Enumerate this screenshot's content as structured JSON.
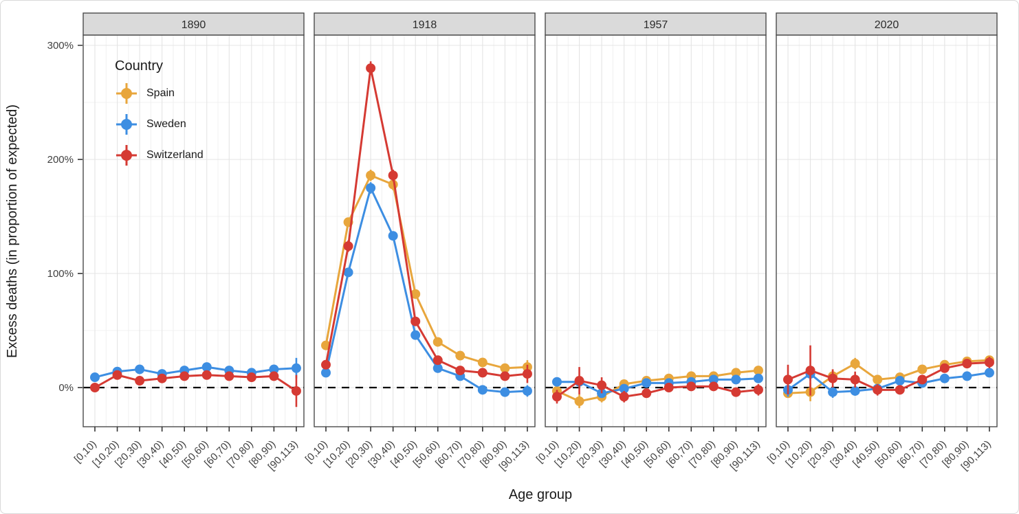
{
  "figure": {
    "ylabel": "Excess deaths (in proportion of expected)",
    "xlabel": "Age group"
  },
  "colors": {
    "series": {
      "Spain": "#E8A63C",
      "Sweden": "#3D8EE2",
      "Switzerland": "#D53A33"
    },
    "strip_bg": "#DADADA",
    "strip_border": "#4A4A4A",
    "panel_border": "#4A4A4A",
    "panel_bg": "#FFFFFF",
    "grid_major": "#E4E4E4",
    "grid_minor": "#F0F0F0",
    "reference_line": "#000000",
    "tick": "#333333",
    "tick_text": "#404040"
  },
  "chart_data": {
    "type": "line",
    "title": "",
    "xlabel": "Age group",
    "ylabel": "Excess deaths (in proportion of expected)",
    "legend": {
      "title": "Country",
      "position": "inside-top-left-first-panel",
      "entries": [
        "Spain",
        "Sweden",
        "Switzerland"
      ]
    },
    "categories": [
      "[0,10)",
      "[10,20)",
      "[20,30)",
      "[30,40)",
      "[40,50)",
      "[50,60)",
      "[60,70)",
      "[70,80)",
      "[80,90)",
      "[90,113)"
    ],
    "y_ticks_pct": [
      0,
      100,
      200,
      300
    ],
    "y_tick_labels": [
      "0%",
      "100%",
      "200%",
      "300%"
    ],
    "ylim_pct": [
      -34,
      309
    ],
    "reference_line_pct": 0,
    "grid": true,
    "units": "percent excess deaths",
    "facets": [
      {
        "label": "1890",
        "series": [
          {
            "name": "Sweden",
            "values_pct": [
              9,
              14,
              16,
              12,
              15,
              18,
              15,
              13,
              16,
              17
            ],
            "err_pct": [
              3,
              3,
              3,
              3,
              3,
              3,
              3,
              3,
              3,
              9
            ]
          },
          {
            "name": "Switzerland",
            "values_pct": [
              0,
              11,
              6,
              8,
              10,
              11,
              10,
              9,
              10,
              -3
            ],
            "err_pct": [
              3,
              4,
              4,
              4,
              4,
              4,
              4,
              4,
              4,
              14
            ]
          }
        ]
      },
      {
        "label": "1918",
        "series": [
          {
            "name": "Spain",
            "values_pct": [
              37,
              145,
              186,
              178,
              82,
              40,
              28,
              22,
              17,
              18
            ],
            "err_pct": [
              4,
              4,
              5,
              5,
              4,
              3,
              3,
              3,
              3,
              6
            ]
          },
          {
            "name": "Sweden",
            "values_pct": [
              13,
              101,
              175,
              133,
              46,
              17,
              10,
              -2,
              -4,
              -3
            ],
            "err_pct": [
              3,
              4,
              5,
              4,
              4,
              3,
              3,
              3,
              3,
              5
            ]
          },
          {
            "name": "Switzerland",
            "values_pct": [
              20,
              124,
              280,
              186,
              58,
              24,
              15,
              13,
              10,
              12
            ],
            "err_pct": [
              4,
              5,
              6,
              5,
              4,
              4,
              3,
              3,
              4,
              8
            ]
          }
        ]
      },
      {
        "label": "1957",
        "series": [
          {
            "name": "Spain",
            "values_pct": [
              -3,
              -12,
              -8,
              3,
              6,
              8,
              10,
              10,
              13,
              15
            ],
            "err_pct": [
              4,
              6,
              5,
              4,
              3,
              3,
              3,
              3,
              3,
              4
            ]
          },
          {
            "name": "Sweden",
            "values_pct": [
              5,
              5,
              -5,
              -1,
              4,
              4,
              5,
              7,
              7,
              8
            ],
            "err_pct": [
              3,
              4,
              4,
              3,
              3,
              3,
              3,
              3,
              3,
              4
            ]
          },
          {
            "name": "Switzerland",
            "values_pct": [
              -8,
              6,
              2,
              -8,
              -5,
              0,
              1,
              1,
              -4,
              -2
            ],
            "err_pct": [
              6,
              12,
              7,
              5,
              4,
              4,
              3,
              3,
              3,
              5
            ]
          }
        ]
      },
      {
        "label": "2020",
        "series": [
          {
            "name": "Spain",
            "values_pct": [
              -5,
              -4,
              10,
              21,
              7,
              9,
              16,
              20,
              23,
              24
            ],
            "err_pct": [
              4,
              8,
              6,
              5,
              4,
              3,
              3,
              3,
              3,
              4
            ]
          },
          {
            "name": "Sweden",
            "values_pct": [
              -2,
              12,
              -4,
              -3,
              -1,
              6,
              4,
              8,
              10,
              13
            ],
            "err_pct": [
              6,
              6,
              5,
              4,
              3,
              3,
              3,
              3,
              3,
              4
            ]
          },
          {
            "name": "Switzerland",
            "values_pct": [
              7,
              15,
              8,
              7,
              -2,
              -2,
              7,
              17,
              21,
              22
            ],
            "err_pct": [
              13,
              22,
              8,
              7,
              5,
              4,
              4,
              4,
              4,
              5
            ]
          }
        ]
      }
    ]
  }
}
